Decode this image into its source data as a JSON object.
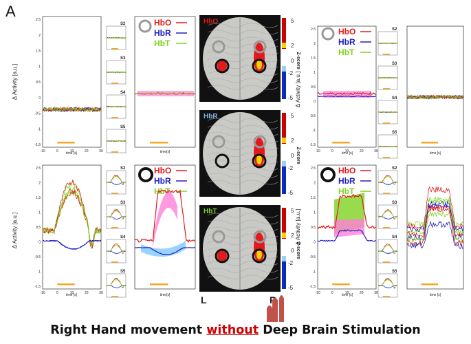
{
  "panel_letter": "A",
  "caption": {
    "prefix": "Right Hand movement ",
    "highlight": "without",
    "suffix": " Deep Brain Stimulation"
  },
  "legend": {
    "hbo": "HbO",
    "hbr": "HbR",
    "hbt": "HbT"
  },
  "colors": {
    "hbo": "#e31a1c",
    "hbr": "#1f1fbf",
    "hbt": "#7ed321",
    "stim": "#f5a623",
    "ci_hbo": "#ff7fd8",
    "ci_hbr": "#7fc8ff"
  },
  "axes": {
    "ylabel": "Δ Activity [a.u.]",
    "xlabel": "time [s]",
    "xlabel_alt": "time[s]",
    "yticks": [
      "2.5",
      "2",
      "1.5",
      "1",
      "0.5",
      "0",
      "-0.5",
      "-1",
      "-1.5"
    ],
    "xticks": [
      "-10",
      "0",
      "10",
      "20",
      "30"
    ]
  },
  "subjects": [
    "S2",
    "S3",
    "S4",
    "S5"
  ],
  "brain_panels": [
    {
      "label": "HbO",
      "label_color": "#e31a1c"
    },
    {
      "label": "HbR",
      "label_color": "#7fb8e8"
    },
    {
      "label": "HbT",
      "label_color": "#7ed321"
    }
  ],
  "colorbar": {
    "ticks": [
      "5",
      "2",
      "0",
      "-2",
      "-5"
    ],
    "label": "Z-score"
  },
  "hemispheres": {
    "left": "L",
    "right": "R"
  }
}
